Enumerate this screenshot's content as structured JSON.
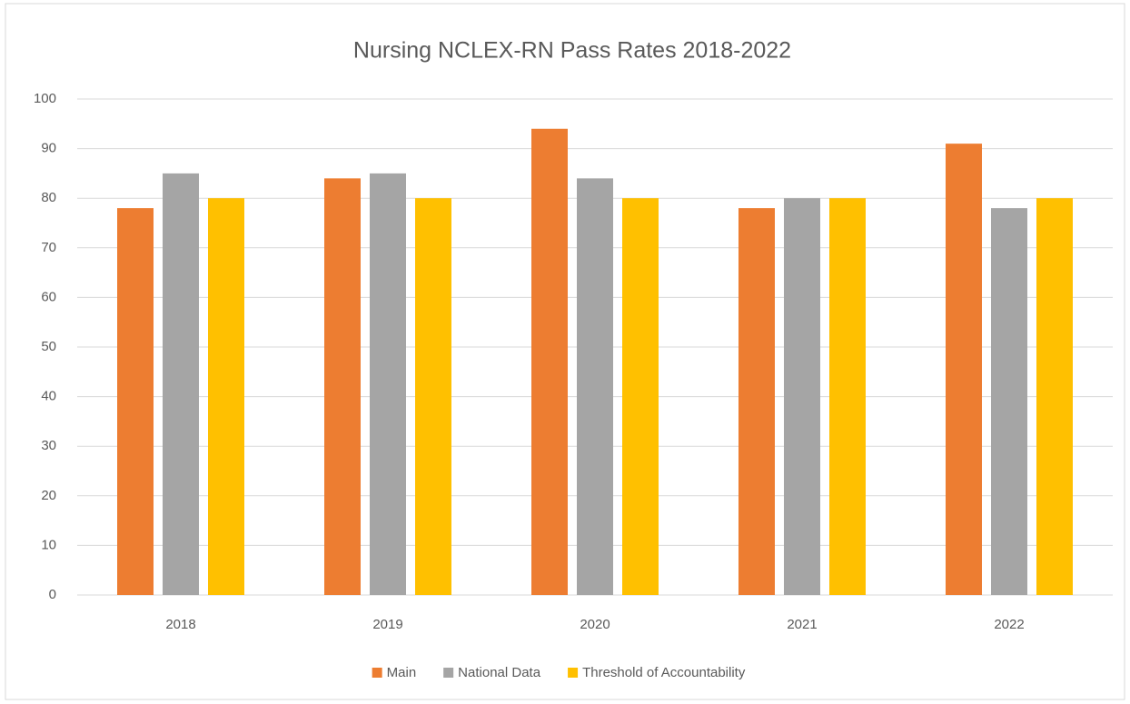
{
  "chart_data": {
    "type": "bar",
    "title": "Nursing NCLEX-RN Pass Rates 2018-2022",
    "categories": [
      "2018",
      "2019",
      "2020",
      "2021",
      "2022"
    ],
    "series": [
      {
        "name": "Main",
        "color": "#ed7d31",
        "values": [
          78,
          84,
          94,
          78,
          91
        ]
      },
      {
        "name": "National Data",
        "color": "#a5a5a5",
        "values": [
          85,
          85,
          84,
          80,
          78
        ]
      },
      {
        "name": "Threshold of Accountability",
        "color": "#ffc000",
        "values": [
          80,
          80,
          80,
          80,
          80
        ]
      }
    ],
    "ylim": [
      0,
      100
    ],
    "yticks": [
      0,
      10,
      20,
      30,
      40,
      50,
      60,
      70,
      80,
      90,
      100
    ],
    "grid": true,
    "legend": "bottom"
  }
}
